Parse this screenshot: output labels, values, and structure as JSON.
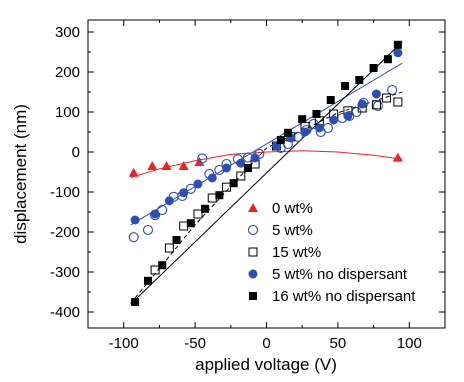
{
  "chart_data": {
    "type": "scatter",
    "xlabel": "applied voltage (V)",
    "ylabel": "displacement (nm)",
    "xlim": [
      -125,
      125
    ],
    "ylim": [
      -440,
      330
    ],
    "x_ticks": [
      -100,
      -50,
      0,
      50,
      100
    ],
    "x_tick_labels": [
      "-100",
      "-50",
      "0",
      "50",
      "100"
    ],
    "y_ticks": [
      -400,
      -300,
      -200,
      -100,
      0,
      100,
      200,
      300
    ],
    "y_tick_labels": [
      "-400",
      "-300",
      "-200",
      "-100",
      "0",
      "100",
      "200",
      "300"
    ],
    "legend_position": "lower-right",
    "series": [
      {
        "name": "0 wt%",
        "marker": "triangle-filled",
        "color": "#e8242b",
        "x": [
          -93,
          -80,
          -70,
          -58,
          -47,
          92
        ],
        "y": [
          -52,
          -35,
          -35,
          -35,
          -25,
          -14
        ],
        "fit": {
          "type": "curve",
          "color": "#e8242b",
          "style": "solid",
          "x": [
            -95,
            -75,
            -50,
            -25,
            0,
            25,
            50,
            75,
            95
          ],
          "y": [
            -64,
            -42,
            -22,
            -6,
            0,
            3,
            0,
            -8,
            -18
          ]
        }
      },
      {
        "name": "5 wt%",
        "marker": "circle-open",
        "color": "#2d4fb0",
        "x": [
          -93,
          -83,
          -78,
          -73,
          -65,
          -59,
          -53,
          -45,
          -40,
          -33,
          -28,
          -20,
          -13,
          -5,
          10,
          15,
          22,
          28,
          33,
          38,
          43,
          53,
          58,
          63,
          68,
          78,
          88
        ],
        "y": [
          -213,
          -195,
          -158,
          -145,
          -112,
          -110,
          -92,
          -16,
          -55,
          -45,
          -30,
          -18,
          -14,
          -5,
          10,
          20,
          38,
          55,
          70,
          50,
          60,
          85,
          90,
          100,
          123,
          115,
          155
        ]
      },
      {
        "name": "15 wt%",
        "marker": "square-open",
        "color": "#000000",
        "x": [
          -78,
          -68,
          -58,
          -48,
          -38,
          -28,
          -18,
          -8,
          7,
          17,
          27,
          37,
          47,
          57,
          67,
          77,
          84,
          92
        ],
        "y": [
          -295,
          -240,
          -185,
          -155,
          -115,
          -88,
          -60,
          -30,
          15,
          38,
          64,
          78,
          95,
          103,
          110,
          118,
          135,
          125
        ],
        "fit": {
          "type": "line",
          "color": "#000000",
          "style": "dashed",
          "x": [
            -95,
            -50,
            0,
            50,
            95
          ],
          "y": [
            -378,
            -182,
            10,
            98,
            150
          ]
        }
      },
      {
        "name": "5 wt% no dispersant",
        "marker": "circle-filled",
        "color": "#2d4fb0",
        "x": [
          -92,
          -78,
          -68,
          -58,
          -48,
          -38,
          -28,
          -18,
          -8,
          7,
          17,
          27,
          37,
          47,
          57,
          67,
          77,
          92
        ],
        "y": [
          -170,
          -155,
          -122,
          -102,
          -80,
          -65,
          -40,
          -28,
          -15,
          15,
          35,
          50,
          60,
          80,
          90,
          120,
          145,
          248
        ],
        "fit": {
          "type": "line",
          "color": "#2d4fb0",
          "style": "solid",
          "x": [
            -95,
            95
          ],
          "y": [
            -182,
            222
          ]
        }
      },
      {
        "name": "16 wt% no dispersant",
        "marker": "square-filled",
        "color": "#000000",
        "x": [
          -92,
          -83,
          -73,
          -63,
          -53,
          -43,
          -33,
          -23,
          -13,
          10,
          15,
          25,
          35,
          45,
          55,
          65,
          75,
          85,
          92
        ],
        "y": [
          -375,
          -322,
          -283,
          -220,
          -178,
          -142,
          -108,
          -78,
          -40,
          30,
          48,
          82,
          95,
          130,
          165,
          180,
          210,
          232,
          268
        ],
        "fit": {
          "type": "line",
          "color": "#000000",
          "style": "solid",
          "x": [
            -95,
            95
          ],
          "y": [
            -380,
            275
          ]
        }
      }
    ]
  }
}
